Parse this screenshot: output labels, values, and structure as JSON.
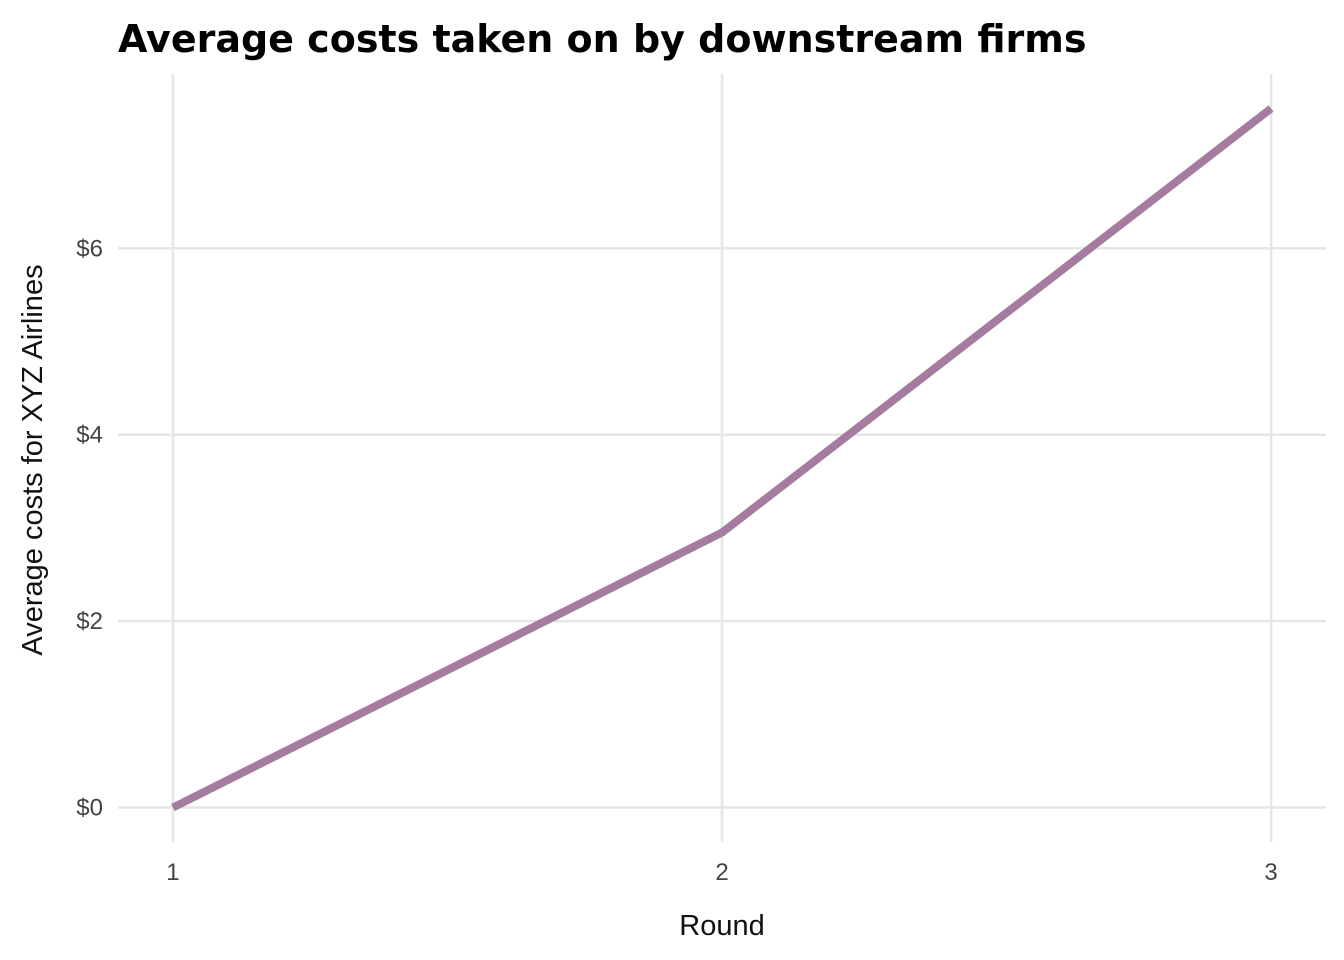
{
  "chart_data": {
    "type": "line",
    "title": "Average costs taken on by downstream firms",
    "xlabel": "Round",
    "ylabel": "Average costs for XYZ Airlines",
    "x": [
      1,
      2,
      3
    ],
    "x_tick_labels": [
      "1",
      "2",
      "3"
    ],
    "xlim": [
      0.9,
      3.1
    ],
    "y_ticks": [
      0,
      2,
      4,
      6
    ],
    "y_tick_labels": [
      "$0",
      "$2",
      "$4",
      "$6"
    ],
    "ylim": [
      -0.37,
      7.87
    ],
    "grid": true,
    "legend": "none",
    "series": [
      {
        "values": [
          0,
          2.95,
          7.5
        ],
        "color": "#a57ba0"
      }
    ]
  }
}
